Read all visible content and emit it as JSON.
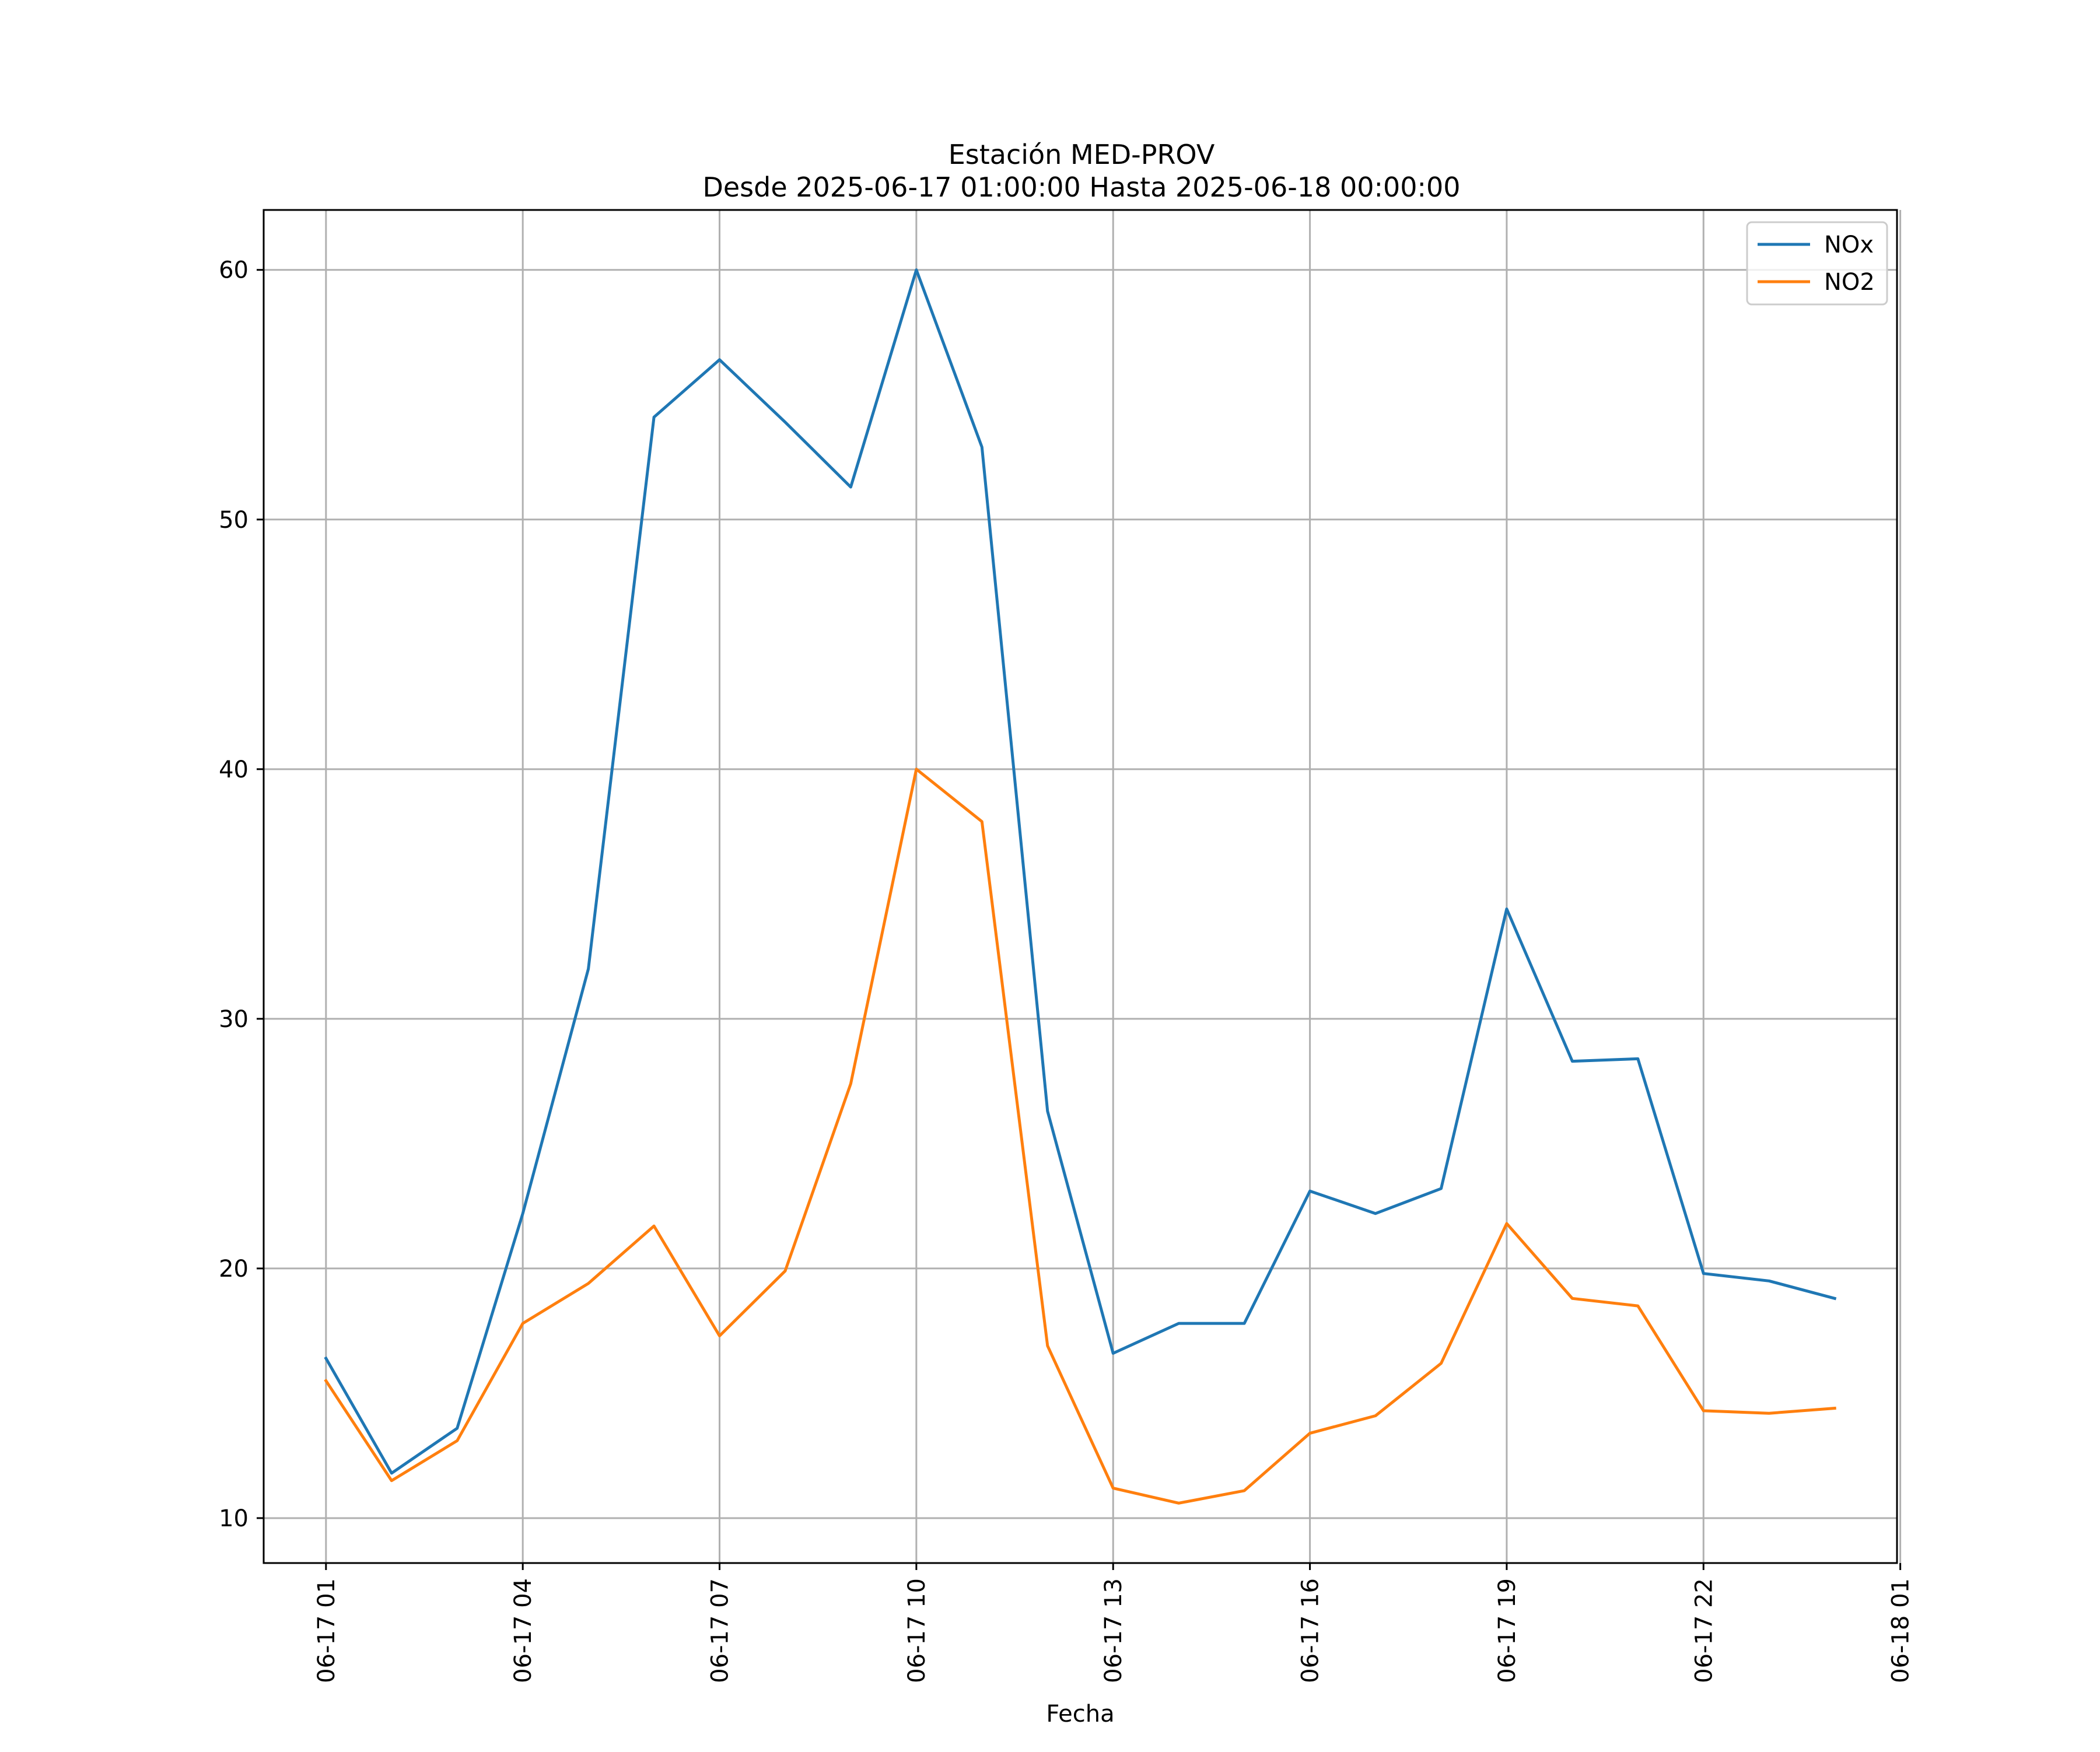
{
  "chart_data": {
    "type": "line",
    "title": "Estación MED-PROV",
    "subtitle": "Desde 2025-06-17 01:00:00 Hasta 2025-06-18 00:00:00",
    "xlabel": "Fecha",
    "ylabel": "",
    "x": [
      "2025-06-17 01:00",
      "2025-06-17 02:00",
      "2025-06-17 03:00",
      "2025-06-17 04:00",
      "2025-06-17 05:00",
      "2025-06-17 06:00",
      "2025-06-17 07:00",
      "2025-06-17 08:00",
      "2025-06-17 09:00",
      "2025-06-17 10:00",
      "2025-06-17 11:00",
      "2025-06-17 12:00",
      "2025-06-17 13:00",
      "2025-06-17 14:00",
      "2025-06-17 15:00",
      "2025-06-17 16:00",
      "2025-06-17 17:00",
      "2025-06-17 18:00",
      "2025-06-17 19:00",
      "2025-06-17 20:00",
      "2025-06-17 21:00",
      "2025-06-17 22:00",
      "2025-06-17 23:00",
      "2025-06-18 00:00"
    ],
    "series": [
      {
        "name": "NOx",
        "color": "#1f77b4",
        "values": [
          16.4,
          11.8,
          13.6,
          22.2,
          32.0,
          54.1,
          56.4,
          53.9,
          51.3,
          60.0,
          52.9,
          26.3,
          16.6,
          17.8,
          17.8,
          23.1,
          22.2,
          23.2,
          34.4,
          28.3,
          28.4,
          19.8,
          19.5,
          18.8
        ]
      },
      {
        "name": "NO2",
        "color": "#ff7f0e",
        "values": [
          15.5,
          11.5,
          13.1,
          17.8,
          19.4,
          21.7,
          17.3,
          19.9,
          27.4,
          40.0,
          37.9,
          16.9,
          11.2,
          10.6,
          11.1,
          13.4,
          14.1,
          16.2,
          21.8,
          18.8,
          18.5,
          14.3,
          14.2,
          14.4
        ]
      }
    ],
    "xlim": [
      "2025-06-17 00:03",
      "2025-06-18 00:57"
    ],
    "ylim": [
      8.2,
      62.4
    ],
    "yticks": [
      10,
      20,
      30,
      40,
      50,
      60
    ],
    "xticks": [
      {
        "x": "2025-06-17 01:00",
        "label": "06-17 01"
      },
      {
        "x": "2025-06-17 04:00",
        "label": "06-17 04"
      },
      {
        "x": "2025-06-17 07:00",
        "label": "06-17 07"
      },
      {
        "x": "2025-06-17 10:00",
        "label": "06-17 10"
      },
      {
        "x": "2025-06-17 13:00",
        "label": "06-17 13"
      },
      {
        "x": "2025-06-17 16:00",
        "label": "06-17 16"
      },
      {
        "x": "2025-06-17 19:00",
        "label": "06-17 19"
      },
      {
        "x": "2025-06-17 22:00",
        "label": "06-17 22"
      },
      {
        "x": "2025-06-18 01:00",
        "label": "06-18 01"
      }
    ],
    "grid": true,
    "legend": "top-right"
  }
}
